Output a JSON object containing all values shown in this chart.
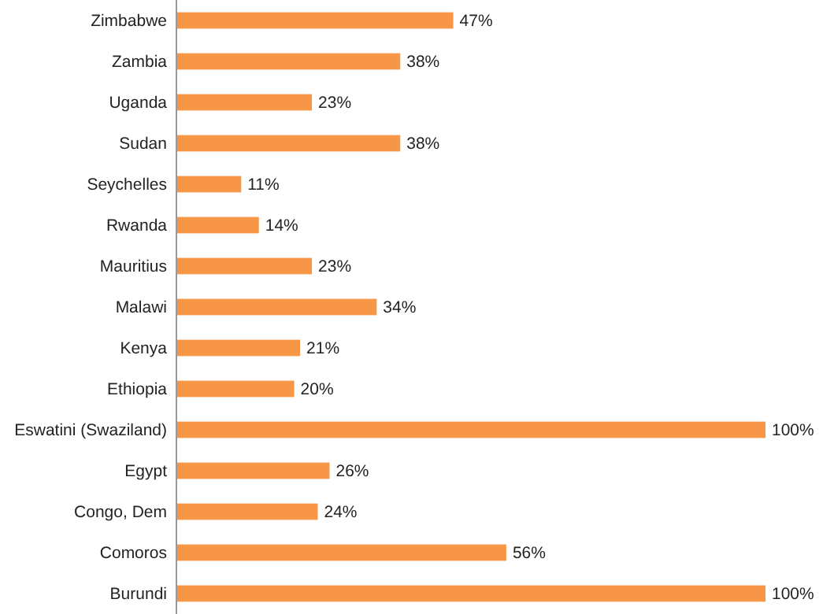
{
  "chart_data": {
    "type": "bar",
    "orientation": "horizontal",
    "categories": [
      "Zimbabwe",
      "Zambia",
      "Uganda",
      "Sudan",
      "Seychelles",
      "Rwanda",
      "Mauritius",
      "Malawi",
      "Kenya",
      "Ethiopia",
      "Eswatini (Swaziland)",
      "Egypt",
      "Congo, Dem",
      "Comoros",
      "Burundi"
    ],
    "values": [
      47,
      38,
      23,
      38,
      11,
      14,
      23,
      34,
      21,
      20,
      100,
      26,
      24,
      56,
      100
    ],
    "value_labels": [
      "47%",
      "38%",
      "23%",
      "38%",
      "11%",
      "14%",
      "23%",
      "34%",
      "21%",
      "20%",
      "100%",
      "26%",
      "24%",
      "56%",
      "100%"
    ],
    "color": "#f79646"
  }
}
